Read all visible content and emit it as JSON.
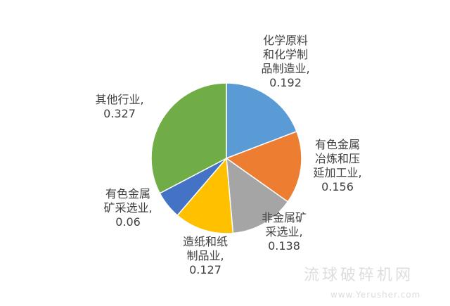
{
  "chart_data": {
    "type": "pie",
    "start_angle": "12 o'clock, clockwise",
    "slices": [
      {
        "label": "化学原料\n和化学制\n品制造业,",
        "value": 0.192,
        "value_text": "0.192",
        "color": "#5B9BD5"
      },
      {
        "label": "有色金属\n冶炼和压\n延加工业,",
        "value": 0.156,
        "value_text": "0.156",
        "color": "#ED7D31"
      },
      {
        "label": "非金属矿\n采选业,",
        "value": 0.138,
        "value_text": "0.138",
        "color": "#A5A5A5"
      },
      {
        "label": "造纸和纸\n制品业,",
        "value": 0.127,
        "value_text": "0.127",
        "color": "#FFC000"
      },
      {
        "label": "有色金属\n矿采选业,",
        "value": 0.06,
        "value_text": "0.06",
        "color": "#4472C4"
      },
      {
        "label": "其他行业,",
        "value": 0.327,
        "value_text": "0.327",
        "color": "#70AD47"
      }
    ],
    "legend": "none, data labels outside"
  },
  "watermark": {
    "text": "流球破碎机网",
    "url": "www.Yerusher.com"
  }
}
